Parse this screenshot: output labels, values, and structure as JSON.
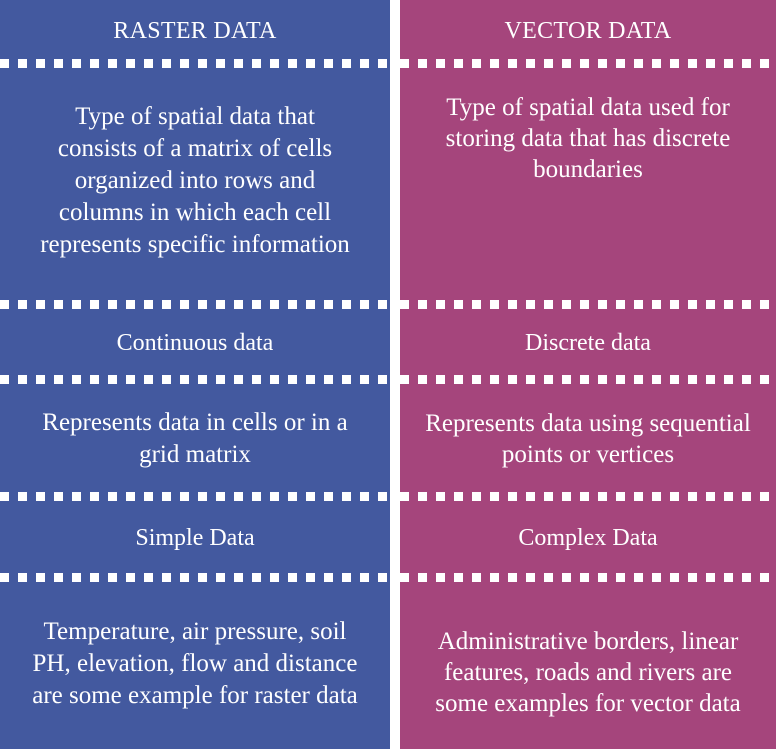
{
  "colors": {
    "raster_bg": "#43599f",
    "vector_bg": "#a5457c",
    "text": "#ffffff"
  },
  "columns": [
    {
      "header": "RASTER DATA",
      "definition": "Type of spatial data that consists of a matrix of cells organized into rows and columns in which each cell represents specific information",
      "data_type": "Continuous data",
      "representation": "Represents data in cells or in a grid matrix",
      "complexity": "Simple Data",
      "examples": "Temperature, air pressure, soil PH, elevation, flow and distance are some example for raster data"
    },
    {
      "header": "VECTOR DATA",
      "definition": "Type of spatial data used for storing data that has discrete boundaries",
      "data_type": "Discrete data",
      "representation": "Represents data using sequential points or vertices",
      "complexity": "Complex Data",
      "examples": "Administrative borders, linear features, roads and rivers are some examples for vector data"
    }
  ]
}
